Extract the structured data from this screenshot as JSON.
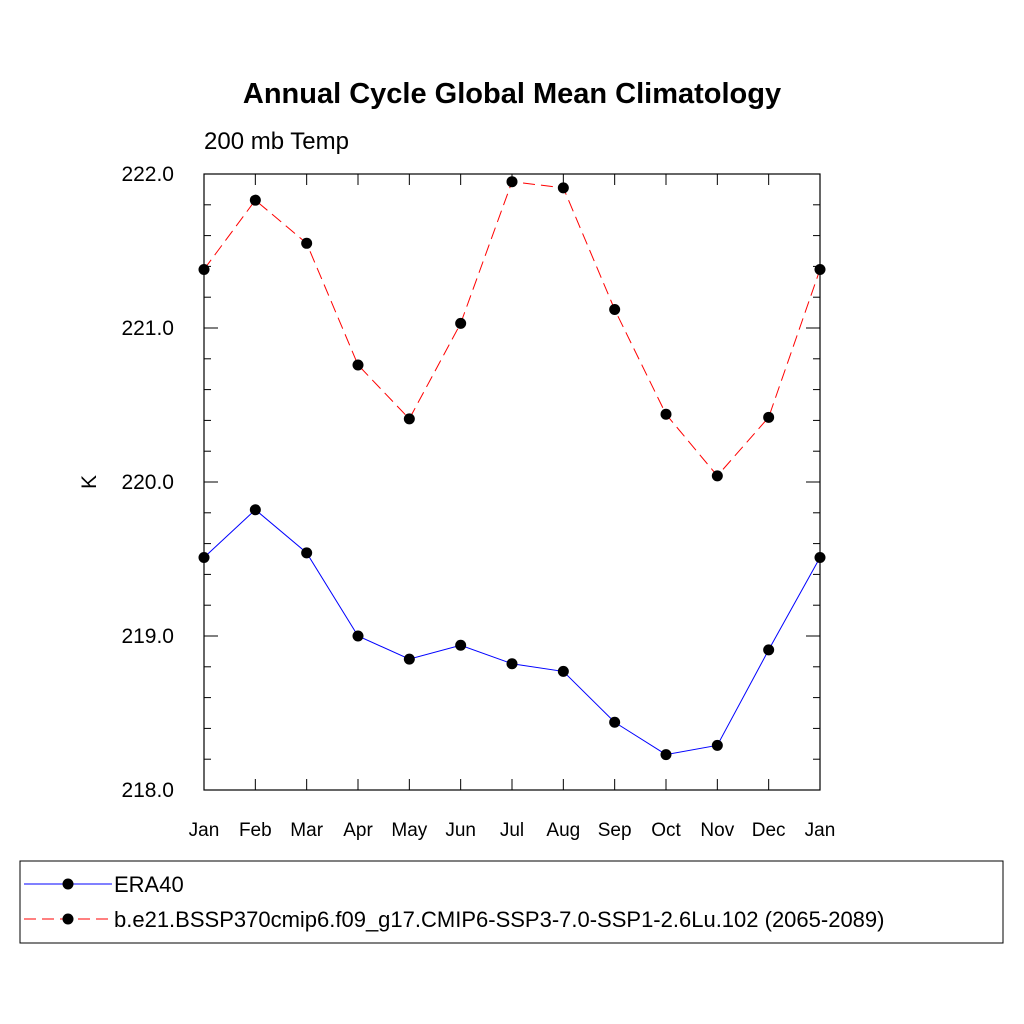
{
  "chart_data": {
    "type": "line",
    "title": "Annual Cycle Global Mean Climatology",
    "subtitle": "200 mb Temp",
    "xlabel": "",
    "ylabel": "K",
    "categories": [
      "Jan",
      "Feb",
      "Mar",
      "Apr",
      "May",
      "Jun",
      "Jul",
      "Aug",
      "Sep",
      "Oct",
      "Nov",
      "Dec",
      "Jan"
    ],
    "ylim": [
      218.0,
      222.0
    ],
    "yticks": [
      "218.0",
      "219.0",
      "220.0",
      "221.0",
      "222.0"
    ],
    "grid": false,
    "legend_position": "bottom",
    "series": [
      {
        "name": "ERA40",
        "color": "#0000ff",
        "line_style": "solid",
        "marker": "filled-circle",
        "values": [
          219.51,
          219.82,
          219.54,
          219.0,
          218.85,
          218.94,
          218.82,
          218.77,
          218.44,
          218.23,
          218.29,
          218.91,
          219.51
        ]
      },
      {
        "name": "b.e21.BSSP370cmip6.f09_g17.CMIP6-SSP3-7.0-SSP1-2.6Lu.102 (2065-2089)",
        "color": "#ff0000",
        "line_style": "dashed",
        "marker": "filled-circle",
        "values": [
          221.38,
          221.83,
          221.55,
          220.76,
          220.41,
          221.03,
          221.95,
          221.91,
          221.12,
          220.44,
          220.04,
          220.42,
          221.38
        ]
      }
    ]
  }
}
